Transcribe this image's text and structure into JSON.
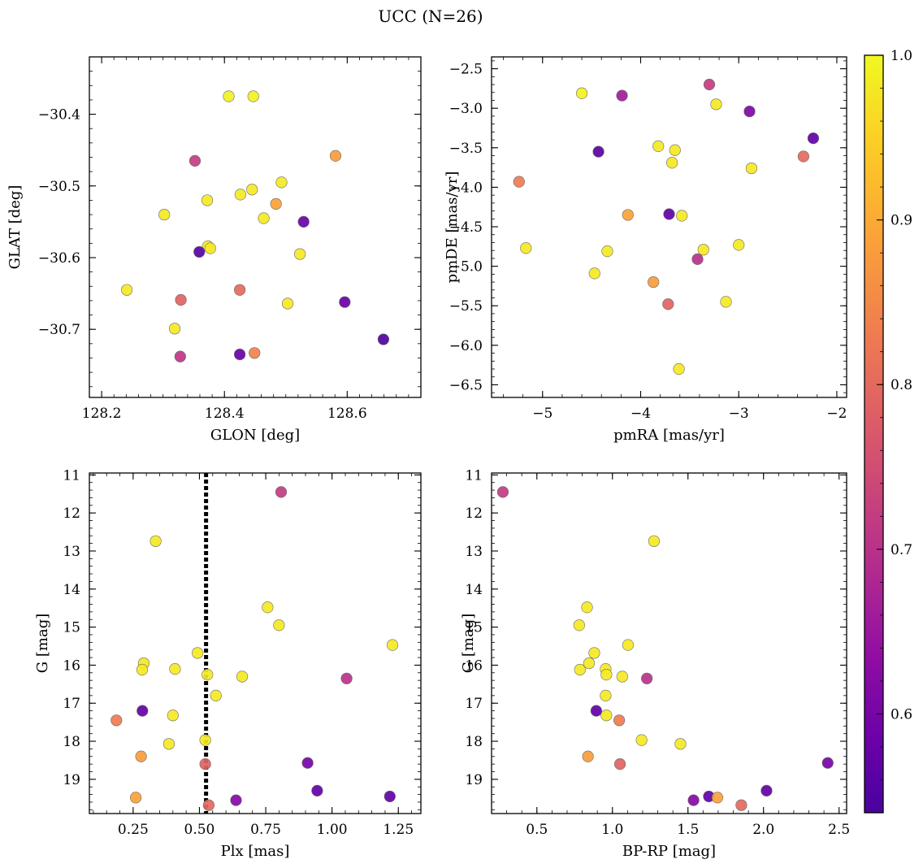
{
  "figure": {
    "title": "UCC (N=26)"
  },
  "colorbar": {
    "min": 0.54,
    "max": 1.0,
    "ticks": [
      0.6,
      0.7,
      0.8,
      0.9,
      1.0
    ],
    "tick_labels": [
      "0.6",
      "0.7",
      "0.8",
      "0.9",
      "1.0"
    ],
    "colormap": "plasma"
  },
  "chart_data": [
    {
      "type": "scatter",
      "xlabel": "GLON [deg]",
      "ylabel": "GLAT [deg]",
      "xlim": [
        128.18,
        128.72
      ],
      "ylim": [
        -30.795,
        -30.32
      ],
      "xticks": [
        128.2,
        128.4,
        128.6
      ],
      "xtick_labels": [
        "128.2",
        "128.4",
        "128.6"
      ],
      "xminor": 0.02,
      "yticks": [
        -30.4,
        -30.5,
        -30.6,
        -30.7
      ],
      "ytick_labels": [
        "−30.4",
        "−30.5",
        "−30.6",
        "−30.7"
      ],
      "yminor": 0.02,
      "points": [
        {
          "x": 128.407,
          "y": -30.375,
          "c": 0.99
        },
        {
          "x": 128.447,
          "y": -30.375,
          "c": 0.99
        },
        {
          "x": 128.352,
          "y": -30.465,
          "c": 0.72
        },
        {
          "x": 128.581,
          "y": -30.458,
          "c": 0.88
        },
        {
          "x": 128.493,
          "y": -30.495,
          "c": 0.98
        },
        {
          "x": 128.445,
          "y": -30.505,
          "c": 0.98
        },
        {
          "x": 128.426,
          "y": -30.512,
          "c": 0.98
        },
        {
          "x": 128.372,
          "y": -30.52,
          "c": 0.98
        },
        {
          "x": 128.484,
          "y": -30.525,
          "c": 0.89
        },
        {
          "x": 128.302,
          "y": -30.54,
          "c": 0.98
        },
        {
          "x": 128.464,
          "y": -30.545,
          "c": 0.98
        },
        {
          "x": 128.529,
          "y": -30.55,
          "c": 0.58
        },
        {
          "x": 128.373,
          "y": -30.584,
          "c": 0.98
        },
        {
          "x": 128.377,
          "y": -30.587,
          "c": 0.98
        },
        {
          "x": 128.359,
          "y": -30.592,
          "c": 0.56
        },
        {
          "x": 128.523,
          "y": -30.595,
          "c": 0.98
        },
        {
          "x": 128.241,
          "y": -30.645,
          "c": 0.98
        },
        {
          "x": 128.425,
          "y": -30.645,
          "c": 0.8
        },
        {
          "x": 128.329,
          "y": -30.659,
          "c": 0.79
        },
        {
          "x": 128.596,
          "y": -30.662,
          "c": 0.58
        },
        {
          "x": 128.503,
          "y": -30.664,
          "c": 0.98
        },
        {
          "x": 128.319,
          "y": -30.699,
          "c": 0.98
        },
        {
          "x": 128.659,
          "y": -30.714,
          "c": 0.55
        },
        {
          "x": 128.449,
          "y": -30.733,
          "c": 0.84
        },
        {
          "x": 128.425,
          "y": -30.735,
          "c": 0.58
        },
        {
          "x": 128.328,
          "y": -30.738,
          "c": 0.71
        }
      ]
    },
    {
      "type": "scatter",
      "xlabel": "pmRA [mas/yr]",
      "ylabel": "pmDE [mas/yr]",
      "xlim": [
        -5.52,
        -1.9
      ],
      "ylim": [
        -6.66,
        -2.35
      ],
      "xticks": [
        -5,
        -4,
        -3,
        -2
      ],
      "xtick_labels": [
        "−5",
        "−4",
        "−3",
        "−2"
      ],
      "xminor": 0.2,
      "yticks": [
        -2.5,
        -3.0,
        -3.5,
        -4.0,
        -4.5,
        -5.0,
        -5.5,
        -6.0,
        -6.5
      ],
      "ytick_labels": [
        "−2.5",
        "−3.0",
        "−3.5",
        "−4.0",
        "−4.5",
        "−5.0",
        "−5.5",
        "−6.0",
        "−6.5"
      ],
      "yminor": 0.1,
      "points": [
        {
          "x": -4.6,
          "y": -2.81,
          "c": 0.99
        },
        {
          "x": -4.19,
          "y": -2.84,
          "c": 0.66
        },
        {
          "x": -3.3,
          "y": -2.7,
          "c": 0.72
        },
        {
          "x": -3.23,
          "y": -2.95,
          "c": 0.98
        },
        {
          "x": -2.89,
          "y": -3.04,
          "c": 0.61
        },
        {
          "x": -2.24,
          "y": -3.38,
          "c": 0.57
        },
        {
          "x": -4.43,
          "y": -3.55,
          "c": 0.56
        },
        {
          "x": -3.82,
          "y": -3.48,
          "c": 0.98
        },
        {
          "x": -3.65,
          "y": -3.53,
          "c": 0.98
        },
        {
          "x": -3.68,
          "y": -3.69,
          "c": 0.98
        },
        {
          "x": -2.87,
          "y": -3.76,
          "c": 0.98
        },
        {
          "x": -2.34,
          "y": -3.61,
          "c": 0.8
        },
        {
          "x": -5.24,
          "y": -3.93,
          "c": 0.83
        },
        {
          "x": -4.13,
          "y": -4.35,
          "c": 0.89
        },
        {
          "x": -3.71,
          "y": -4.34,
          "c": 0.57
        },
        {
          "x": -3.58,
          "y": -4.36,
          "c": 0.98
        },
        {
          "x": -5.17,
          "y": -4.77,
          "c": 0.98
        },
        {
          "x": -4.34,
          "y": -4.81,
          "c": 0.98
        },
        {
          "x": -3.36,
          "y": -4.79,
          "c": 0.98
        },
        {
          "x": -3.0,
          "y": -4.73,
          "c": 0.98
        },
        {
          "x": -3.42,
          "y": -4.91,
          "c": 0.7
        },
        {
          "x": -4.47,
          "y": -5.09,
          "c": 0.98
        },
        {
          "x": -3.87,
          "y": -5.2,
          "c": 0.88
        },
        {
          "x": -3.72,
          "y": -5.48,
          "c": 0.79
        },
        {
          "x": -3.13,
          "y": -5.45,
          "c": 0.98
        },
        {
          "x": -3.61,
          "y": -6.3,
          "c": 0.98
        }
      ]
    },
    {
      "type": "scatter",
      "xlabel": "Plx [mas]",
      "ylabel": "G [mag]",
      "xlim": [
        0.085,
        1.335
      ],
      "ylim": [
        19.9,
        10.95
      ],
      "xticks": [
        0.25,
        0.5,
        0.75,
        1.0,
        1.25
      ],
      "xtick_labels": [
        "0.25",
        "0.50",
        "0.75",
        "1.00",
        "1.25"
      ],
      "xminor": 0.05,
      "yticks": [
        11,
        12,
        13,
        14,
        15,
        16,
        17,
        18,
        19
      ],
      "ytick_labels": [
        "11",
        "12",
        "13",
        "14",
        "15",
        "16",
        "17",
        "18",
        "19"
      ],
      "yminor": 0.2,
      "vline": 0.525,
      "points": [
        {
          "x": 0.808,
          "y": 11.45,
          "c": 0.72
        },
        {
          "x": 0.335,
          "y": 12.74,
          "c": 0.98
        },
        {
          "x": 0.757,
          "y": 14.48,
          "c": 0.98
        },
        {
          "x": 0.8,
          "y": 14.95,
          "c": 0.98
        },
        {
          "x": 1.228,
          "y": 15.47,
          "c": 0.98
        },
        {
          "x": 0.493,
          "y": 15.68,
          "c": 0.98
        },
        {
          "x": 0.29,
          "y": 15.95,
          "c": 0.98
        },
        {
          "x": 0.284,
          "y": 16.12,
          "c": 0.98
        },
        {
          "x": 0.408,
          "y": 16.1,
          "c": 0.98
        },
        {
          "x": 0.53,
          "y": 16.25,
          "c": 0.98
        },
        {
          "x": 0.661,
          "y": 16.3,
          "c": 0.98
        },
        {
          "x": 1.055,
          "y": 16.35,
          "c": 0.7
        },
        {
          "x": 0.562,
          "y": 16.8,
          "c": 0.98
        },
        {
          "x": 0.285,
          "y": 17.2,
          "c": 0.57
        },
        {
          "x": 0.4,
          "y": 17.32,
          "c": 0.98
        },
        {
          "x": 0.187,
          "y": 17.45,
          "c": 0.83
        },
        {
          "x": 0.522,
          "y": 17.97,
          "c": 0.98
        },
        {
          "x": 0.385,
          "y": 18.07,
          "c": 0.98
        },
        {
          "x": 0.28,
          "y": 18.4,
          "c": 0.88
        },
        {
          "x": 0.522,
          "y": 18.6,
          "c": 0.79
        },
        {
          "x": 0.908,
          "y": 18.57,
          "c": 0.6
        },
        {
          "x": 0.944,
          "y": 19.3,
          "c": 0.57
        },
        {
          "x": 1.218,
          "y": 19.45,
          "c": 0.57
        },
        {
          "x": 0.26,
          "y": 19.48,
          "c": 0.89
        },
        {
          "x": 0.638,
          "y": 19.55,
          "c": 0.62
        },
        {
          "x": 0.535,
          "y": 19.68,
          "c": 0.8
        }
      ]
    },
    {
      "type": "scatter",
      "xlabel": "BP-RP [mag]",
      "ylabel": "G [mag]",
      "xlim": [
        0.2,
        2.55
      ],
      "ylim": [
        19.9,
        10.95
      ],
      "xticks": [
        0.5,
        1.0,
        1.5,
        2.0,
        2.5
      ],
      "xtick_labels": [
        "0.5",
        "1.0",
        "1.5",
        "2.0",
        "2.5"
      ],
      "xminor": 0.1,
      "yticks": [
        11,
        12,
        13,
        14,
        15,
        16,
        17,
        18,
        19
      ],
      "ytick_labels": [
        "11",
        "12",
        "13",
        "14",
        "15",
        "16",
        "17",
        "18",
        "19"
      ],
      "yminor": 0.2,
      "points": [
        {
          "x": 0.275,
          "y": 11.45,
          "c": 0.72
        },
        {
          "x": 1.275,
          "y": 12.74,
          "c": 0.98
        },
        {
          "x": 0.832,
          "y": 14.48,
          "c": 0.98
        },
        {
          "x": 0.78,
          "y": 14.95,
          "c": 0.98
        },
        {
          "x": 1.103,
          "y": 15.47,
          "c": 0.98
        },
        {
          "x": 0.88,
          "y": 15.68,
          "c": 0.98
        },
        {
          "x": 0.845,
          "y": 15.95,
          "c": 0.98
        },
        {
          "x": 0.785,
          "y": 16.12,
          "c": 0.98
        },
        {
          "x": 0.955,
          "y": 16.1,
          "c": 0.98
        },
        {
          "x": 0.96,
          "y": 16.25,
          "c": 0.98
        },
        {
          "x": 1.065,
          "y": 16.3,
          "c": 0.98
        },
        {
          "x": 1.228,
          "y": 16.35,
          "c": 0.7
        },
        {
          "x": 0.955,
          "y": 16.8,
          "c": 0.98
        },
        {
          "x": 0.893,
          "y": 17.2,
          "c": 0.57
        },
        {
          "x": 0.96,
          "y": 17.32,
          "c": 0.98
        },
        {
          "x": 1.045,
          "y": 17.45,
          "c": 0.83
        },
        {
          "x": 1.193,
          "y": 17.97,
          "c": 0.98
        },
        {
          "x": 1.45,
          "y": 18.07,
          "c": 0.98
        },
        {
          "x": 0.838,
          "y": 18.4,
          "c": 0.88
        },
        {
          "x": 1.05,
          "y": 18.6,
          "c": 0.79
        },
        {
          "x": 2.425,
          "y": 18.57,
          "c": 0.6
        },
        {
          "x": 2.02,
          "y": 19.3,
          "c": 0.57
        },
        {
          "x": 1.638,
          "y": 19.45,
          "c": 0.57
        },
        {
          "x": 1.695,
          "y": 19.48,
          "c": 0.89
        },
        {
          "x": 1.537,
          "y": 19.55,
          "c": 0.62
        },
        {
          "x": 1.853,
          "y": 19.68,
          "c": 0.8
        }
      ]
    }
  ]
}
